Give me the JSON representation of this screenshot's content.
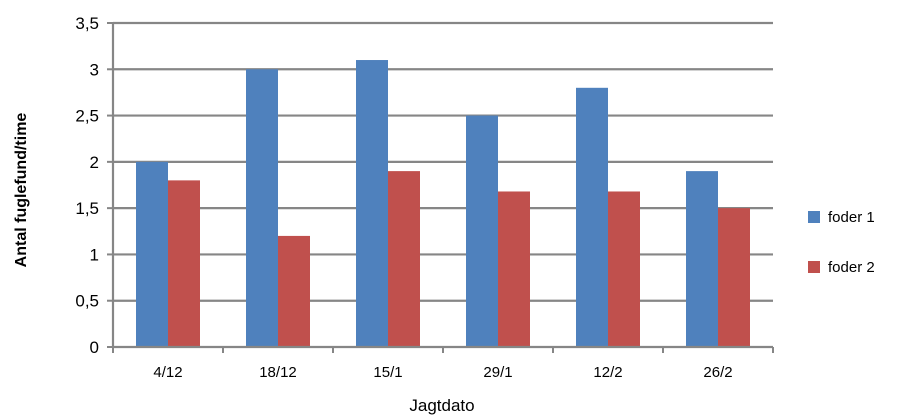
{
  "chart_data": {
    "type": "bar",
    "categories": [
      "4/12",
      "18/12",
      "15/1",
      "29/1",
      "12/2",
      "26/2"
    ],
    "series": [
      {
        "name": "foder 1",
        "values": [
          2.0,
          3.0,
          3.1,
          2.5,
          2.8,
          1.9
        ],
        "color": "#4F81BD"
      },
      {
        "name": "foder 2",
        "values": [
          1.8,
          1.2,
          1.9,
          1.68,
          1.68,
          1.5
        ],
        "color": "#C0504D"
      }
    ],
    "xlabel": "Jagtdato",
    "ylabel": "Antal fuglefund/time",
    "ylim": [
      0,
      3.5
    ],
    "yticks": [
      {
        "value": 0,
        "label": "0"
      },
      {
        "value": 0.5,
        "label": "0,5"
      },
      {
        "value": 1,
        "label": "1"
      },
      {
        "value": 1.5,
        "label": "1,5"
      },
      {
        "value": 2,
        "label": "2"
      },
      {
        "value": 2.5,
        "label": "2,5"
      },
      {
        "value": 3,
        "label": "3"
      },
      {
        "value": 3.5,
        "label": "3,5"
      }
    ],
    "grid": true,
    "legend_position": "right",
    "gridline_color": "#868686"
  }
}
